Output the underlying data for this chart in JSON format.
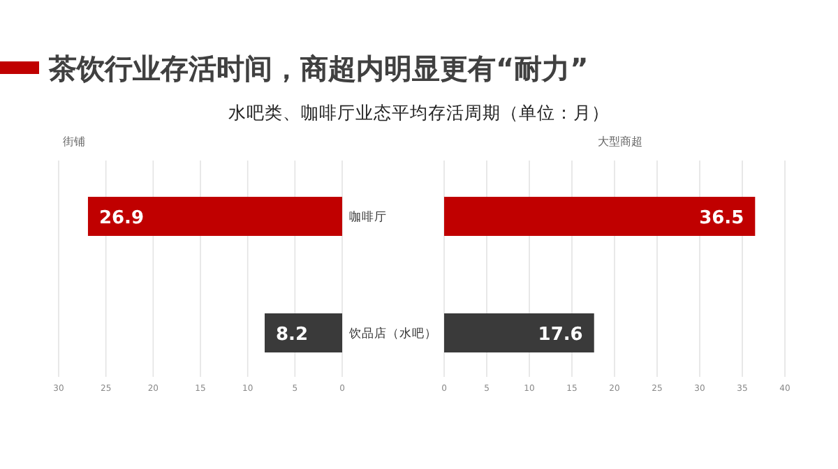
{
  "chart_data": [
    {
      "type": "other",
      "title": "茶饮行业存活时间，商超内明显更有“耐力”",
      "subtitle": "水吧类、咖啡厅业态平均存活周期（单位：月）"
    },
    {
      "type": "bar",
      "orientation": "horizontal",
      "title": "街铺",
      "categories": [
        "咖啡厅",
        "饮品店（水吧）"
      ],
      "values": [
        26.9,
        8.2
      ],
      "colors": [
        "#c00000",
        "#3a3a3a"
      ],
      "xlim": [
        30,
        0
      ],
      "xticks": [
        30,
        25,
        20,
        15,
        10,
        5,
        0
      ],
      "grid": "x",
      "data_labels": true
    },
    {
      "type": "bar",
      "orientation": "horizontal",
      "title": "大型商超",
      "categories": [
        null,
        null
      ],
      "values": [
        36.5,
        17.6
      ],
      "colors": [
        "#c00000",
        "#3a3a3a"
      ],
      "xlim": [
        0,
        40
      ],
      "xticks": [
        0,
        5,
        10,
        15,
        20,
        25,
        30,
        35,
        40
      ],
      "grid": "x",
      "data_labels": true,
      "tick_labels": "x"
    }
  ]
}
